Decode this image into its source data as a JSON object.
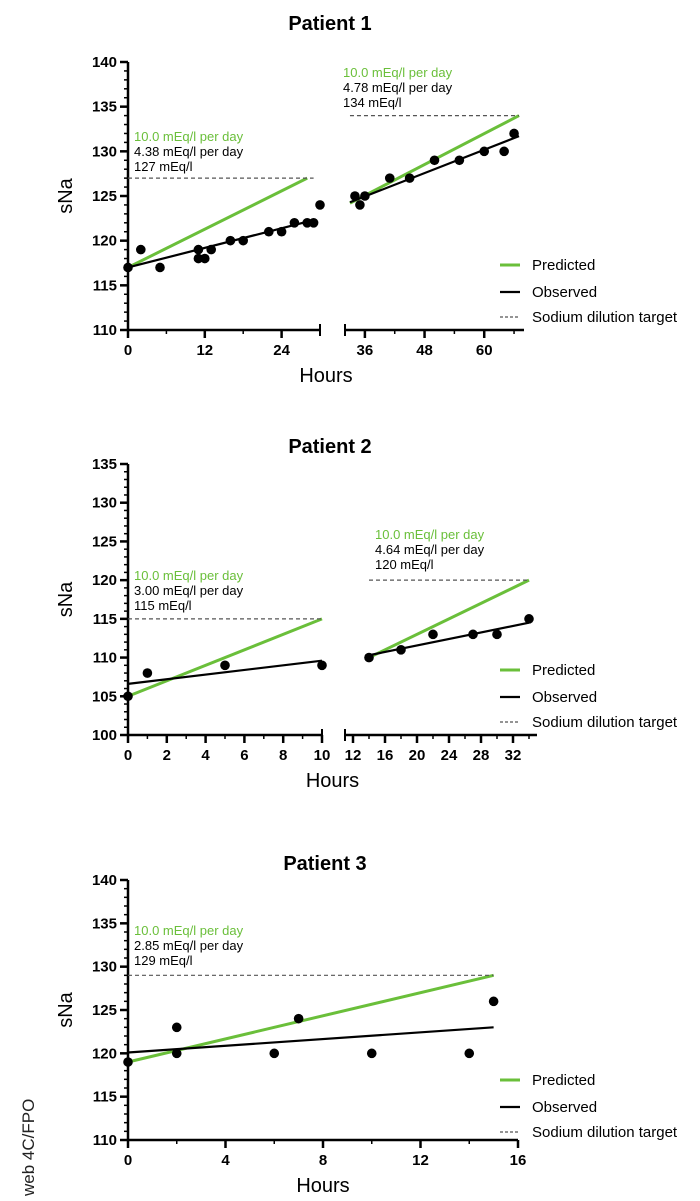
{
  "watermark": "web 4C/FPO",
  "legend": {
    "predicted": "Predicted",
    "observed": "Observed",
    "target": "Sodium dilution target"
  },
  "colors": {
    "predicted": "#6abf3a",
    "observed": "#000000",
    "target": "#555555"
  },
  "chart_data": [
    {
      "type": "scatter",
      "title": "Patient 1",
      "xlabel": "Hours",
      "ylabel": "sNa",
      "ylim": [
        110,
        140
      ],
      "yticks": [
        110,
        115,
        120,
        125,
        130,
        135,
        140
      ],
      "segments": [
        {
          "xlim": [
            0,
            30
          ],
          "xticks": [
            0,
            12,
            24
          ]
        },
        {
          "xlim": [
            32,
            68
          ],
          "xticks": [
            36,
            48,
            60
          ]
        }
      ],
      "annotations": [
        {
          "predicted_rate": "10.0 mEq/l per day",
          "observed_rate": "4.38 mEq/l per day",
          "target": "127 mEq/l"
        },
        {
          "predicted_rate": "10.0 mEq/l per day",
          "observed_rate": "4.78 mEq/l per day",
          "target": "134 mEq/l"
        }
      ],
      "series": [
        {
          "name": "Observed",
          "kind": "points",
          "x": [
            0,
            2,
            5,
            11,
            11,
            12,
            13,
            16,
            18,
            22,
            24,
            26,
            28,
            29,
            30,
            34,
            35,
            36,
            41,
            45,
            50,
            55,
            60,
            64,
            66
          ],
          "y": [
            117,
            119,
            117,
            119,
            118,
            118,
            119,
            120,
            120,
            121,
            121,
            122,
            122,
            122,
            124,
            125,
            124,
            125,
            127,
            127,
            129,
            129,
            130,
            130,
            132
          ]
        },
        {
          "name": "Predicted",
          "kind": "line",
          "segment": 0,
          "x": [
            0,
            28
          ],
          "y": [
            117,
            127
          ]
        },
        {
          "name": "Observed",
          "kind": "line",
          "segment": 0,
          "x": [
            0,
            29
          ],
          "y": [
            117,
            122.3
          ]
        },
        {
          "name": "Sodium dilution target",
          "kind": "dashed",
          "segment": 0,
          "x": [
            0,
            29
          ],
          "y": [
            127,
            127
          ]
        },
        {
          "name": "Predicted",
          "kind": "line",
          "segment": 1,
          "x": [
            33,
            67
          ],
          "y": [
            124.2,
            134
          ]
        },
        {
          "name": "Observed",
          "kind": "line",
          "segment": 1,
          "x": [
            33,
            67
          ],
          "y": [
            124.3,
            131.7
          ]
        },
        {
          "name": "Sodium dilution target",
          "kind": "dashed",
          "segment": 1,
          "x": [
            33,
            67
          ],
          "y": [
            134,
            134
          ]
        }
      ]
    },
    {
      "type": "scatter",
      "title": "Patient 2",
      "xlabel": "Hours",
      "ylabel": "sNa",
      "ylim": [
        100,
        135
      ],
      "yticks": [
        100,
        105,
        110,
        115,
        120,
        125,
        130,
        135
      ],
      "segments": [
        {
          "xlim": [
            0,
            10
          ],
          "xticks": [
            0,
            2,
            4,
            6,
            8,
            10
          ]
        },
        {
          "xlim": [
            11,
            35
          ],
          "xticks": [
            12,
            16,
            20,
            24,
            28,
            32
          ]
        }
      ],
      "annotations": [
        {
          "predicted_rate": "10.0 mEq/l per day",
          "observed_rate": "3.00 mEq/l per day",
          "target": "115 mEq/l"
        },
        {
          "predicted_rate": "10.0 mEq/l per day",
          "observed_rate": "4.64 mEq/l per day",
          "target": "120 mEq/l"
        }
      ],
      "series": [
        {
          "name": "Observed",
          "kind": "points",
          "x": [
            0,
            1,
            5,
            10,
            14,
            18,
            22,
            27,
            30,
            34
          ],
          "y": [
            105,
            108,
            109,
            109,
            110,
            111,
            113,
            113,
            113,
            115
          ]
        },
        {
          "name": "Predicted",
          "kind": "line",
          "segment": 0,
          "x": [
            0,
            10
          ],
          "y": [
            105,
            115
          ]
        },
        {
          "name": "Observed",
          "kind": "line",
          "segment": 0,
          "x": [
            0,
            10
          ],
          "y": [
            106.6,
            109.6
          ]
        },
        {
          "name": "Sodium dilution target",
          "kind": "dashed",
          "segment": 0,
          "x": [
            0,
            10
          ],
          "y": [
            115,
            115
          ]
        },
        {
          "name": "Predicted",
          "kind": "line",
          "segment": 1,
          "x": [
            14,
            34
          ],
          "y": [
            110,
            120
          ]
        },
        {
          "name": "Observed",
          "kind": "line",
          "segment": 1,
          "x": [
            14,
            34
          ],
          "y": [
            110.3,
            114.5
          ]
        },
        {
          "name": "Sodium dilution target",
          "kind": "dashed",
          "segment": 1,
          "x": [
            14,
            34
          ],
          "y": [
            120,
            120
          ]
        }
      ]
    },
    {
      "type": "scatter",
      "title": "Patient 3",
      "xlabel": "Hours",
      "ylabel": "sNa",
      "ylim": [
        110,
        140
      ],
      "yticks": [
        110,
        115,
        120,
        125,
        130,
        135,
        140
      ],
      "segments": [
        {
          "xlim": [
            0,
            16
          ],
          "xticks": [
            0,
            4,
            8,
            12,
            16
          ]
        }
      ],
      "annotations": [
        {
          "predicted_rate": "10.0 mEq/l per day",
          "observed_rate": "2.85 mEq/l per day",
          "target": "129 mEq/l"
        }
      ],
      "series": [
        {
          "name": "Observed",
          "kind": "points",
          "x": [
            0,
            2,
            2,
            6,
            7,
            10,
            14,
            15
          ],
          "y": [
            119,
            123,
            120,
            120,
            124,
            120,
            120,
            126
          ]
        },
        {
          "name": "Predicted",
          "kind": "line",
          "segment": 0,
          "x": [
            0,
            15
          ],
          "y": [
            119,
            129
          ]
        },
        {
          "name": "Observed",
          "kind": "line",
          "segment": 0,
          "x": [
            0,
            15
          ],
          "y": [
            120.1,
            123
          ]
        },
        {
          "name": "Sodium dilution target",
          "kind": "dashed",
          "segment": 0,
          "x": [
            0,
            15
          ],
          "y": [
            129,
            129
          ]
        }
      ]
    }
  ]
}
